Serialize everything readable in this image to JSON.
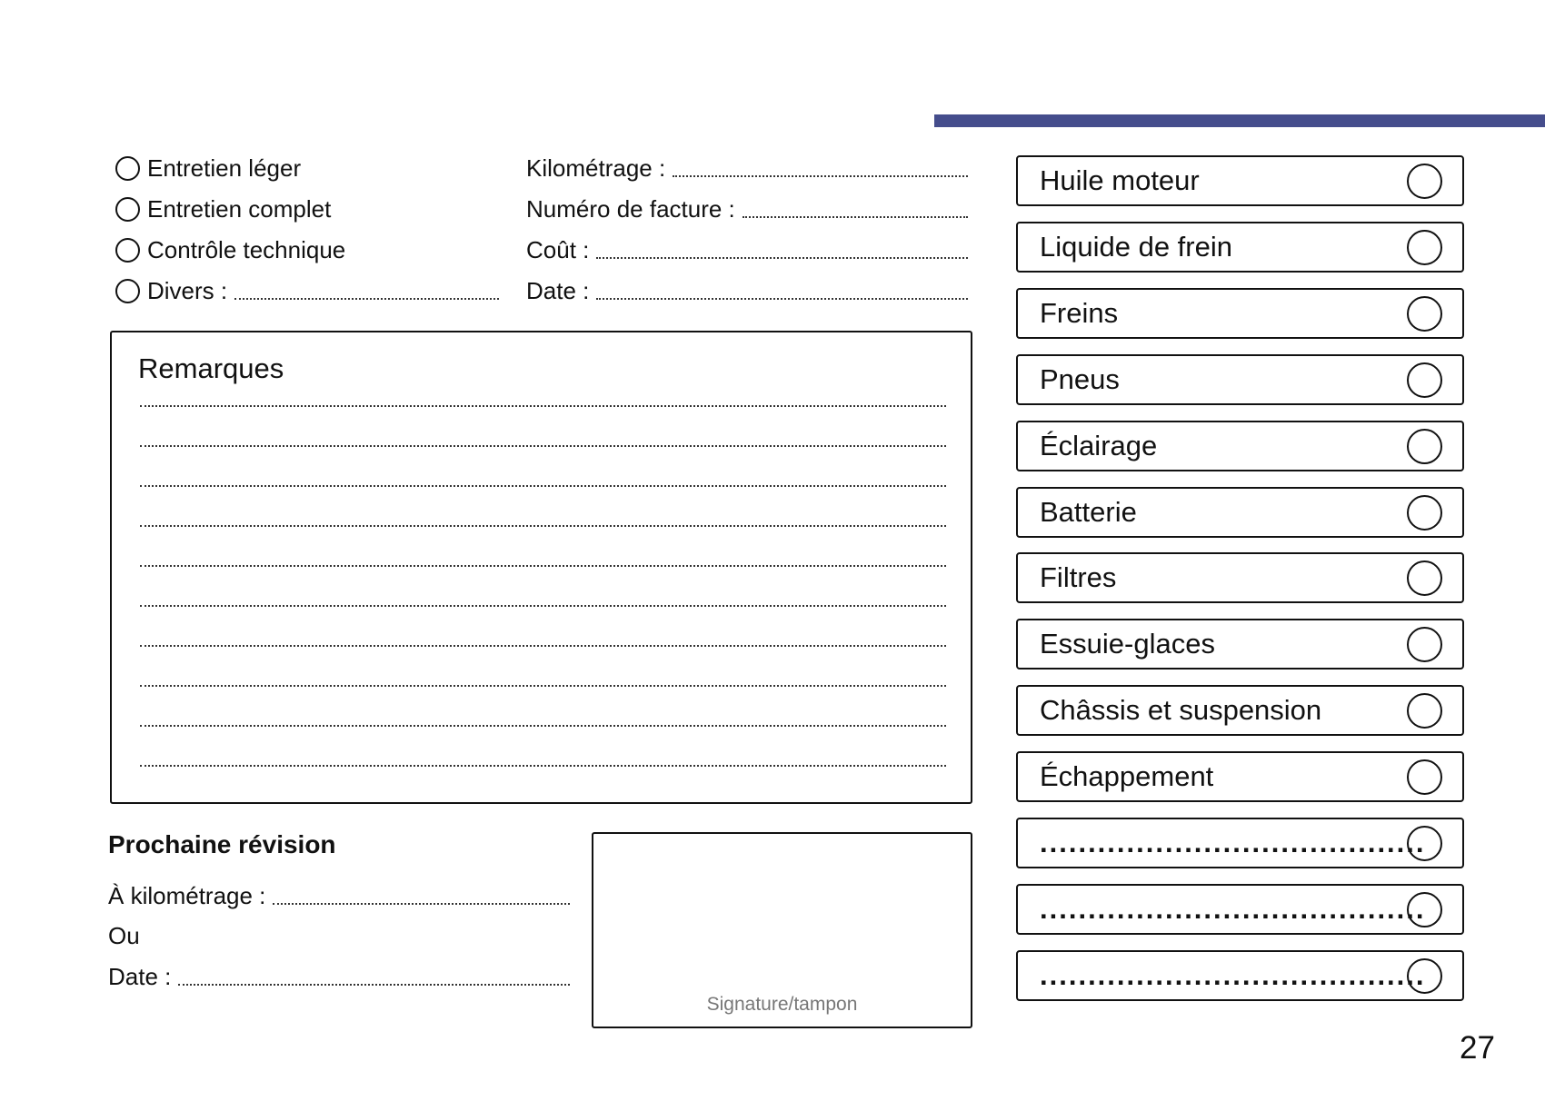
{
  "accent_color": "#454d8c",
  "service_types": [
    {
      "label": "Entretien léger",
      "fill": false
    },
    {
      "label": "Entretien complet",
      "fill": false
    },
    {
      "label": "Contrôle technique",
      "fill": false
    },
    {
      "label": "Divers :",
      "fill": true
    }
  ],
  "fields": [
    "Kilométrage :",
    "Numéro de facture :",
    "Coût :",
    "Date :"
  ],
  "remarks": {
    "title": "Remarques",
    "line_count": 10
  },
  "checklist": [
    "Huile moteur",
    "Liquide de frein",
    "Freins",
    "Pneus",
    "Éclairage",
    "Batterie",
    "Filtres",
    "Essuie-glaces",
    "Châssis et suspension",
    "Échappement",
    "........................................",
    "........................................",
    "........................................"
  ],
  "next_service": {
    "title": "Prochaine révision",
    "km_label": "À kilométrage :",
    "or_label": "Ou",
    "date_label": "Date :"
  },
  "signature_label": "Signature/tampon",
  "page_number": "27"
}
